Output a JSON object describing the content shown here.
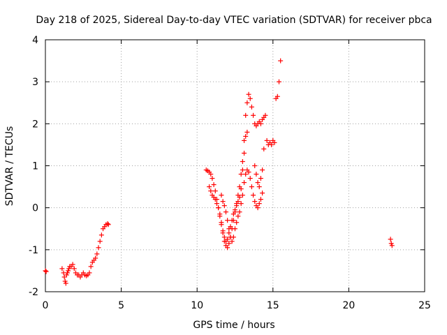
{
  "chart_data": {
    "type": "scatter",
    "title": "Day 218 of 2025, Sidereal Day-to-day VTEC variation (SDTVAR) for receiver pbca",
    "xlabel": "GPS time / hours",
    "ylabel": "SDTVAR / TECUs",
    "xlim": [
      0,
      25
    ],
    "ylim": [
      -2,
      4
    ],
    "xticks": [
      0,
      5,
      10,
      15,
      20,
      25
    ],
    "yticks": [
      -2,
      -1,
      0,
      1,
      2,
      3,
      4
    ],
    "xtick_labels": [
      "0",
      "5",
      "10",
      "15",
      "20",
      "25"
    ],
    "ytick_labels": [
      "-2",
      "-1",
      "0",
      "1",
      "2",
      "3",
      "4"
    ],
    "grid": true,
    "marker": "plus",
    "marker_color": "#ff0000",
    "series": [
      {
        "name": "pbca",
        "x": [
          0.0,
          0.05,
          1.1,
          1.2,
          1.25,
          1.3,
          1.35,
          1.4,
          1.45,
          1.5,
          1.55,
          1.6,
          1.7,
          1.8,
          1.9,
          2.0,
          2.1,
          2.2,
          2.3,
          2.4,
          2.5,
          2.6,
          2.7,
          2.8,
          2.9,
          3.0,
          3.1,
          3.2,
          3.3,
          3.4,
          3.5,
          3.6,
          3.7,
          3.8,
          3.9,
          4.0,
          4.1,
          4.15,
          10.6,
          10.7,
          10.8,
          10.9,
          11.0,
          11.1,
          11.2,
          11.3,
          11.4,
          11.5,
          11.6,
          11.7,
          11.8,
          11.9,
          12.0,
          12.1,
          12.2,
          12.3,
          12.4,
          12.5,
          12.6,
          12.7,
          12.8,
          12.9,
          13.0,
          13.1,
          13.2,
          13.3,
          13.4,
          13.5,
          13.6,
          13.7,
          13.8,
          13.9,
          14.0,
          14.1,
          14.2,
          14.3,
          14.4,
          14.5,
          14.6,
          14.7,
          14.8,
          14.9,
          15.0,
          15.1,
          15.2,
          15.3,
          15.4,
          15.5,
          10.8,
          10.9,
          11.0,
          11.1,
          11.2,
          11.3,
          11.4,
          11.5,
          11.6,
          11.7,
          11.8,
          11.9,
          12.0,
          12.1,
          12.2,
          12.3,
          12.4,
          12.5,
          12.6,
          12.7,
          12.8,
          12.9,
          13.0,
          13.1,
          13.2,
          13.3,
          11.6,
          11.7,
          11.8,
          11.9,
          12.0,
          12.1,
          12.2,
          12.3,
          12.4,
          12.5,
          12.6,
          12.7,
          12.8,
          12.9,
          13.0,
          13.1,
          13.2,
          13.3,
          13.4,
          13.5,
          13.6,
          13.7,
          13.8,
          13.9,
          14.0,
          14.1,
          14.2,
          14.3,
          13.8,
          13.9,
          14.0,
          14.1,
          14.2,
          14.3,
          14.4,
          22.75,
          22.8,
          22.85
        ],
        "y": [
          -1.5,
          -1.52,
          -1.45,
          -1.55,
          -1.65,
          -1.75,
          -1.8,
          -1.6,
          -1.55,
          -1.5,
          -1.45,
          -1.4,
          -1.4,
          -1.35,
          -1.45,
          -1.55,
          -1.6,
          -1.6,
          -1.65,
          -1.6,
          -1.55,
          -1.6,
          -1.62,
          -1.6,
          -1.55,
          -1.4,
          -1.3,
          -1.25,
          -1.2,
          -1.1,
          -0.95,
          -0.8,
          -0.65,
          -0.5,
          -0.45,
          -0.4,
          -0.38,
          -0.4,
          0.9,
          0.88,
          0.85,
          0.8,
          0.7,
          0.55,
          0.4,
          0.2,
          0.0,
          -0.2,
          -0.4,
          -0.6,
          -0.8,
          -0.9,
          -0.95,
          -0.85,
          -0.7,
          -0.5,
          -0.3,
          -0.1,
          0.1,
          0.3,
          0.5,
          0.8,
          1.1,
          1.6,
          2.2,
          2.5,
          2.7,
          2.6,
          2.4,
          2.2,
          2.0,
          1.95,
          2.0,
          2.05,
          2.0,
          2.1,
          2.15,
          2.2,
          1.6,
          1.5,
          1.55,
          1.5,
          1.6,
          1.55,
          2.6,
          2.65,
          3.0,
          3.5,
          0.5,
          0.4,
          0.3,
          0.25,
          0.2,
          0.1,
          0.0,
          -0.15,
          -0.35,
          -0.55,
          -0.7,
          -0.8,
          -0.75,
          -0.6,
          -0.45,
          -0.3,
          -0.15,
          -0.05,
          0.05,
          0.15,
          0.25,
          0.45,
          0.9,
          1.3,
          1.7,
          1.8,
          0.3,
          0.15,
          0.05,
          -0.1,
          -0.3,
          -0.5,
          -0.7,
          -0.8,
          -0.7,
          -0.5,
          -0.35,
          -0.2,
          -0.1,
          0.1,
          0.3,
          0.6,
          0.8,
          0.9,
          0.85,
          0.7,
          0.5,
          0.3,
          0.15,
          0.05,
          0.0,
          0.1,
          0.2,
          0.35,
          1.0,
          0.8,
          0.6,
          0.5,
          0.7,
          0.9,
          1.4,
          -0.75,
          -0.85,
          -0.9
        ]
      }
    ]
  }
}
